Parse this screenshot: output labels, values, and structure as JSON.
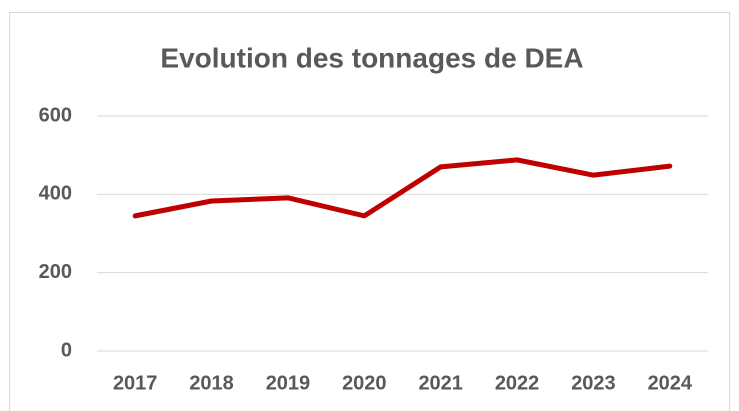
{
  "chart_data": {
    "type": "line",
    "title": "Evolution des tonnages de DEA",
    "categories": [
      "2017",
      "2018",
      "2019",
      "2020",
      "2021",
      "2022",
      "2023",
      "2024"
    ],
    "series": [
      {
        "name": "DEA",
        "color": "#c00000",
        "values": [
          345,
          383,
          391,
          345,
          470,
          488,
          449,
          472
        ]
      }
    ],
    "ylim": [
      0,
      600
    ],
    "yticks": [
      0,
      200,
      400,
      600
    ],
    "grid": true
  }
}
